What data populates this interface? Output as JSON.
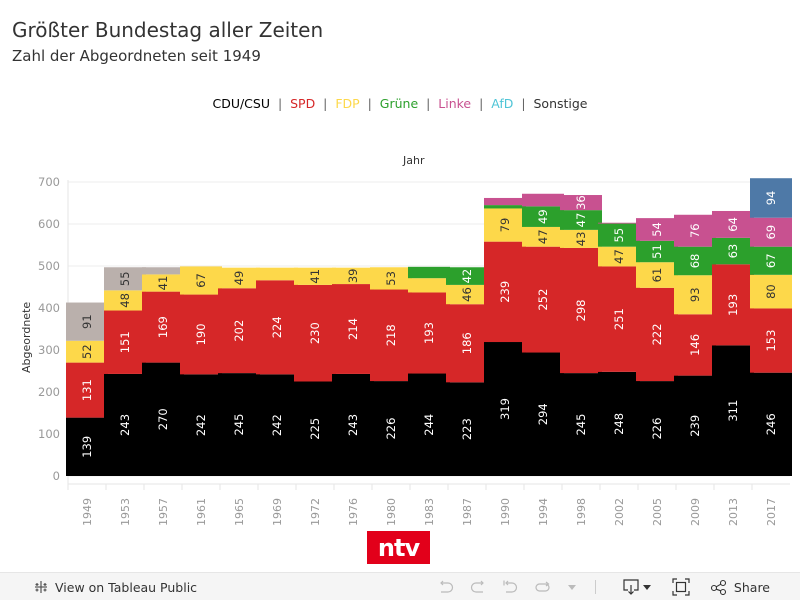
{
  "header": {
    "title": "Größter Bundestag aller Zeiten",
    "subtitle": "Zahl der Abgeordneten seit 1949"
  },
  "legend": {
    "items": [
      {
        "label": "CDU/CSU",
        "color": "#000000"
      },
      {
        "label": "SPD",
        "color": "#d62728"
      },
      {
        "label": "FDP",
        "color": "#fdd84a"
      },
      {
        "label": "Grüne",
        "color": "#2ca02c"
      },
      {
        "label": "Linke",
        "color": "#c85190"
      },
      {
        "label": "AfD",
        "color": "#4ec4d6"
      },
      {
        "label": "Sonstige",
        "color": "#333333"
      }
    ],
    "separator": "|"
  },
  "chart_data": {
    "type": "bar",
    "stacked": true,
    "column_header": "Jahr",
    "ylabel": "Abgeordnete",
    "xlabel": "",
    "ylim": [
      0,
      720
    ],
    "yticks": [
      0,
      100,
      200,
      300,
      400,
      500,
      600,
      700
    ],
    "grid": true,
    "categories": [
      "1949",
      "1953",
      "1957",
      "1961",
      "1965",
      "1969",
      "1972",
      "1976",
      "1980",
      "1983",
      "1987",
      "1990",
      "1994",
      "1998",
      "2002",
      "2005",
      "2009",
      "2013",
      "2017"
    ],
    "series": [
      {
        "name": "CDU/CSU",
        "color": "#000000",
        "label_color": "#ffffff",
        "values": [
          139,
          243,
          270,
          242,
          245,
          242,
          225,
          243,
          226,
          244,
          223,
          319,
          294,
          245,
          248,
          226,
          239,
          311,
          246
        ]
      },
      {
        "name": "SPD",
        "color": "#d62728",
        "label_color": "#ffffff",
        "values": [
          131,
          151,
          169,
          190,
          202,
          224,
          230,
          214,
          218,
          193,
          186,
          239,
          252,
          298,
          251,
          222,
          146,
          193,
          153
        ]
      },
      {
        "name": "FDP",
        "color": "#fdd84a",
        "label_color": "#333333",
        "values": [
          52,
          48,
          41,
          67,
          49,
          30,
          41,
          39,
          53,
          34,
          46,
          79,
          47,
          43,
          47,
          61,
          93,
          0,
          80
        ]
      },
      {
        "name": "Grüne",
        "color": "#2ca02c",
        "label_color": "#ffffff",
        "values": [
          0,
          0,
          0,
          0,
          0,
          0,
          0,
          0,
          0,
          27,
          42,
          8,
          49,
          47,
          55,
          51,
          68,
          63,
          67
        ]
      },
      {
        "name": "Linke",
        "color": "#c85190",
        "label_color": "#ffffff",
        "values": [
          0,
          0,
          0,
          0,
          0,
          0,
          0,
          0,
          0,
          0,
          0,
          17,
          30,
          36,
          2,
          54,
          76,
          64,
          69
        ]
      },
      {
        "name": "AfD",
        "color": "#4e79a7",
        "label_color": "#ffffff",
        "values": [
          0,
          0,
          0,
          0,
          0,
          0,
          0,
          0,
          0,
          0,
          0,
          0,
          0,
          0,
          0,
          0,
          0,
          0,
          94
        ]
      },
      {
        "name": "Sonstige",
        "color": "#bab0ac",
        "label_color": "#333333",
        "values": [
          91,
          55,
          17,
          0,
          0,
          0,
          0,
          0,
          0,
          0,
          0,
          0,
          0,
          0,
          0,
          0,
          0,
          0,
          0
        ]
      }
    ],
    "shown_labels_min": 36
  },
  "branding": {
    "logo_text": "ntv"
  },
  "toolbar": {
    "view_label": "View on Tableau Public",
    "share_label": "Share",
    "buttons": [
      "undo-icon",
      "redo-icon",
      "revert-icon",
      "refresh-icon",
      "pause-dropdown",
      "download-icon",
      "fullscreen-icon",
      "share-icon"
    ]
  }
}
